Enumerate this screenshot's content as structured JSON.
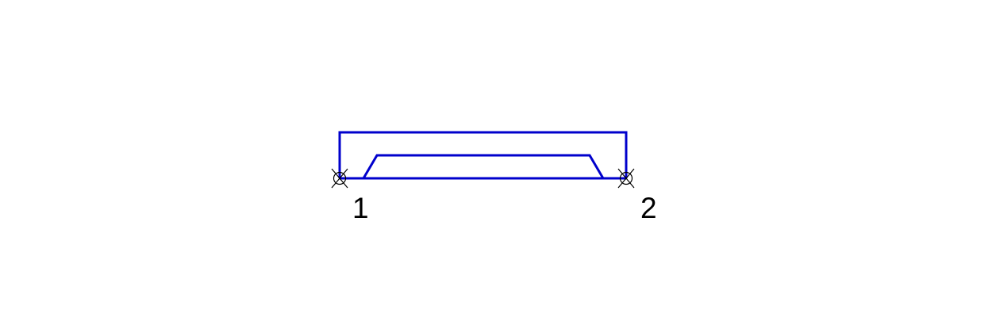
{
  "diagram": {
    "line_color": "#0000cc",
    "terminal_marker_color": "#000000",
    "label_color": "#000000",
    "terminals": [
      {
        "label": "1",
        "icon": "crossed-circle-terminal-icon"
      },
      {
        "label": "2",
        "icon": "crossed-circle-terminal-icon"
      }
    ]
  }
}
